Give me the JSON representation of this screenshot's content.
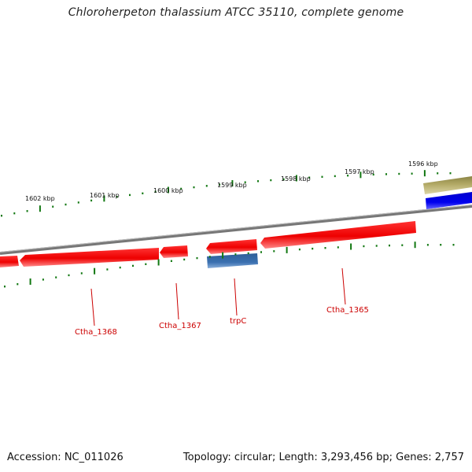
{
  "title": "Chloroherpeton thalassium ATCC 35110, complete genome",
  "footer": {
    "accession": "Accession: NC_011026",
    "summary": "Topology: circular; Length: 3,293,456 bp; Genes: 2,757"
  },
  "scale_labels": [
    "1602 kbp",
    "1601 kbp",
    "1600 kbp",
    "1599 kbp",
    "1598 kbp",
    "1597 kbp",
    "1596 kbp"
  ],
  "gene_labels": [
    "Ctha_1368",
    "Ctha_1367",
    "trpC",
    "Ctha_1365"
  ],
  "colors": {
    "gene_red": "#ee0000",
    "gene_blue": "#3366aa",
    "gene_tan": "#b3aa66",
    "gene_bright_blue": "#0000ee",
    "tick_green": "#117711",
    "backbone": "#888888",
    "label_red": "#cc0000"
  }
}
